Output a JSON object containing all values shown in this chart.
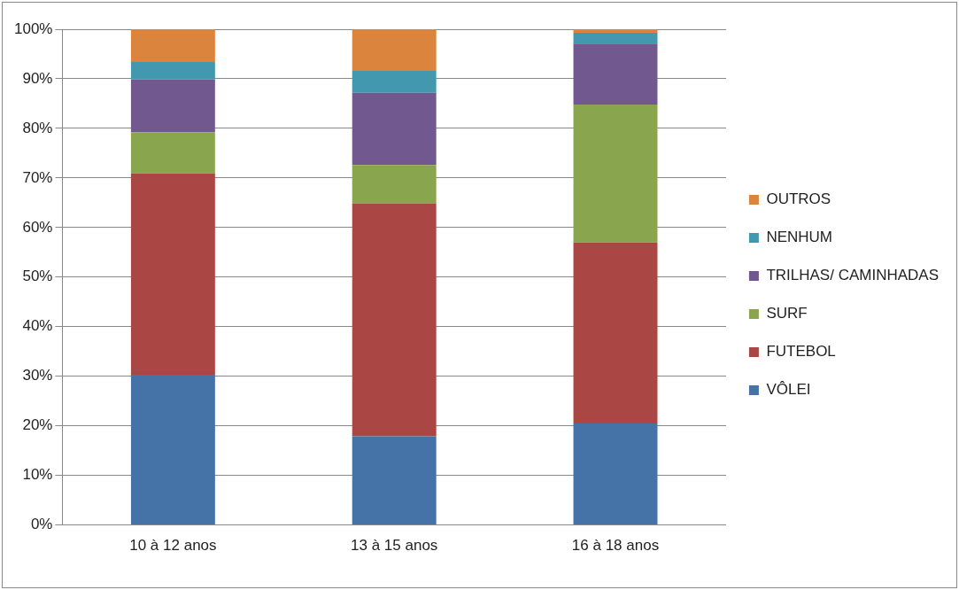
{
  "chart_data": {
    "type": "bar",
    "stacked": true,
    "categories": [
      "10 à 12 anos",
      "13 à 15 anos",
      "16 à 18 anos"
    ],
    "series": [
      {
        "name": "VÔLEI",
        "color": "#4572a7",
        "values": [
          30.3,
          17.9,
          20.5
        ]
      },
      {
        "name": "FUTEBOL",
        "color": "#aa4643",
        "values": [
          40.6,
          47.0,
          36.5
        ]
      },
      {
        "name": "SURF",
        "color": "#89a54e",
        "values": [
          8.3,
          7.7,
          27.8
        ]
      },
      {
        "name": "TRILHAS/ CAMINHADAS",
        "color": "#71588f",
        "values": [
          10.7,
          14.6,
          12.3
        ]
      },
      {
        "name": "NENHUM",
        "color": "#4198af",
        "values": [
          3.5,
          4.4,
          2.2
        ]
      },
      {
        "name": "OUTROS",
        "color": "#db843d",
        "values": [
          6.6,
          8.4,
          0.7
        ]
      }
    ],
    "ylim": [
      0,
      100
    ],
    "yticks": [
      {
        "value": 0,
        "label": "0%"
      },
      {
        "value": 10,
        "label": "10%"
      },
      {
        "value": 20,
        "label": "20%"
      },
      {
        "value": 30,
        "label": "30%"
      },
      {
        "value": 40,
        "label": "40%"
      },
      {
        "value": 50,
        "label": "50%"
      },
      {
        "value": 60,
        "label": "60%"
      },
      {
        "value": 70,
        "label": "70%"
      },
      {
        "value": 80,
        "label": "80%"
      },
      {
        "value": 90,
        "label": "90%"
      },
      {
        "value": 100,
        "label": "100%"
      }
    ],
    "grid": "y",
    "legend": "right"
  }
}
